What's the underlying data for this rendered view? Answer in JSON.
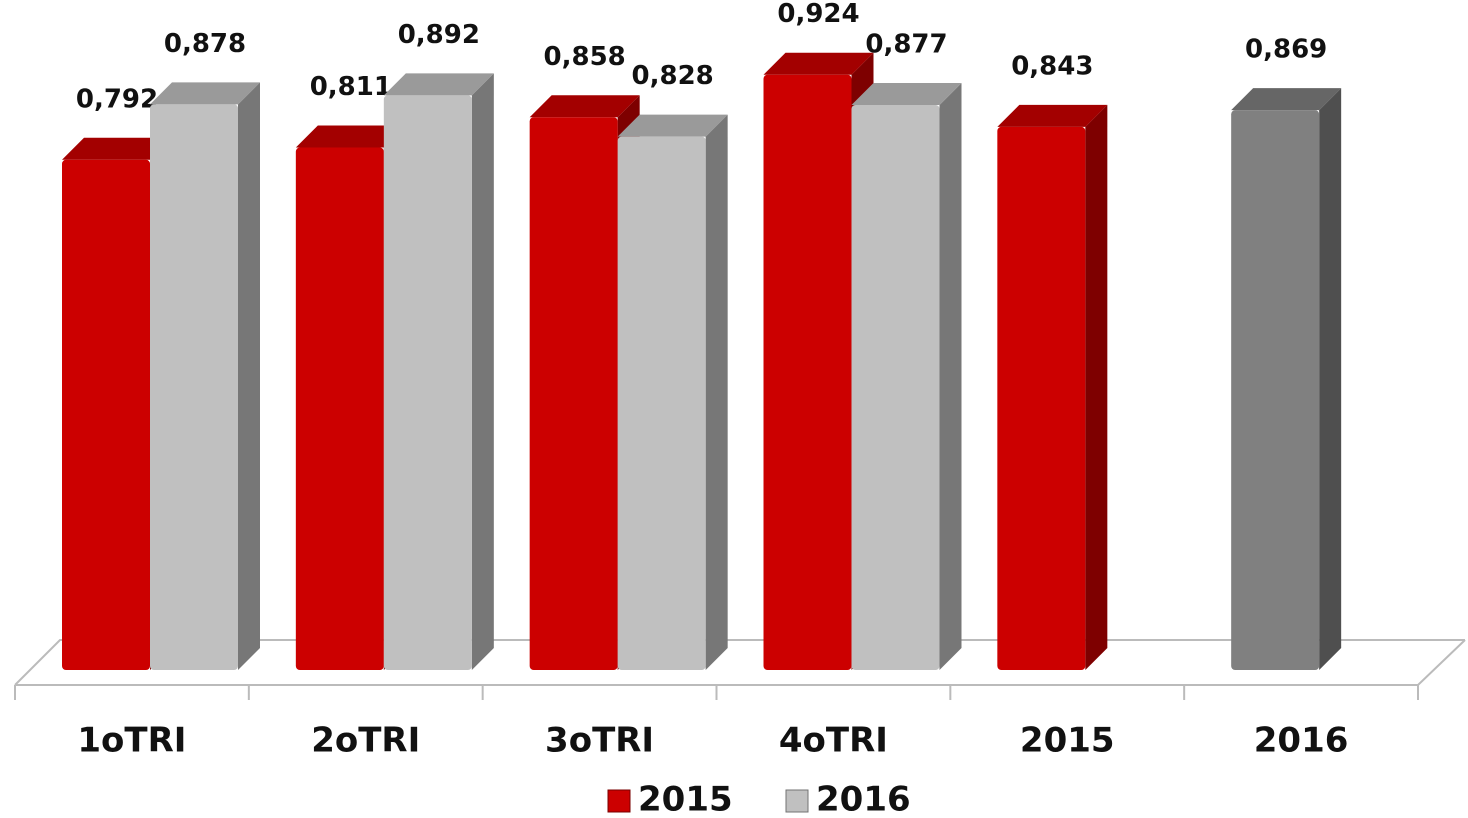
{
  "chart_data": {
    "type": "bar3d",
    "categories": [
      "1oTRI",
      "2oTRI",
      "3oTRI",
      "4oTRI",
      "2015",
      "2016"
    ],
    "series": [
      {
        "name": "2015",
        "color": "#cc0000",
        "values": [
          0.792,
          0.811,
          0.858,
          0.924,
          0.843,
          null
        ],
        "value_labels": [
          "0,792",
          "0,811",
          "0,858",
          "0,924",
          "0,843",
          null
        ]
      },
      {
        "name": "2016",
        "color": "#c0c0c0",
        "colors": [
          "#c0c0c0",
          "#c0c0c0",
          "#c0c0c0",
          "#c0c0c0",
          "#c0c0c0",
          "#808080"
        ],
        "values": [
          0.878,
          0.892,
          0.828,
          0.877,
          null,
          0.869
        ],
        "value_labels": [
          "0,878",
          "0,892",
          "0,828",
          "0,877",
          null,
          "0,869"
        ]
      }
    ],
    "ylim": [
      0,
      1.04
    ]
  }
}
